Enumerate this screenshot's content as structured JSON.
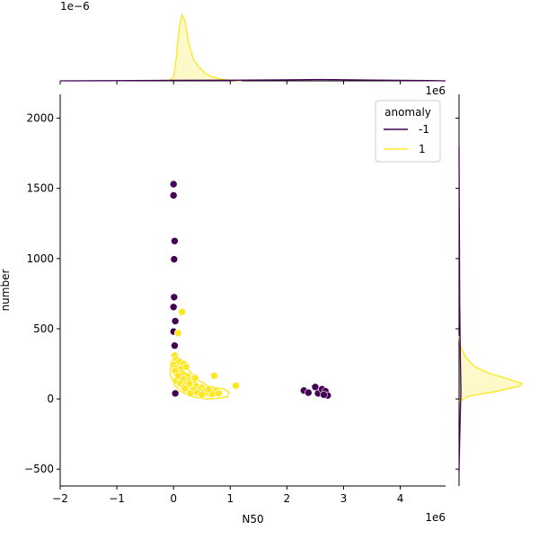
{
  "chart_data": {
    "type": "scatter",
    "xlabel": "N50",
    "ylabel": "number",
    "x_offset_text": "1e6",
    "y_offset_text_top_marginal": "1e−6",
    "x_offset_text_right_marginal": "1e6",
    "xlim": [
      -2.0,
      4.8
    ],
    "ylim": [
      -620,
      2170
    ],
    "xticks": [
      -2,
      -1,
      0,
      1,
      2,
      3,
      4
    ],
    "yticks": [
      -500,
      0,
      500,
      1000,
      1500,
      2000
    ],
    "legend": {
      "title": "anomaly",
      "placement": "top-right",
      "entries": [
        {
          "label": "-1",
          "color": "#440154"
        },
        {
          "label": "1",
          "color": "#fde725"
        }
      ]
    },
    "series": [
      {
        "name": "-1",
        "color": "#440154",
        "points": [
          [
            0.0,
            1530
          ],
          [
            0.0,
            1450
          ],
          [
            0.02,
            1125
          ],
          [
            0.01,
            995
          ],
          [
            0.01,
            725
          ],
          [
            0.0,
            655
          ],
          [
            0.03,
            555
          ],
          [
            0.0,
            480
          ],
          [
            0.02,
            380
          ],
          [
            0.03,
            40
          ],
          [
            2.3,
            60
          ],
          [
            2.38,
            45
          ],
          [
            2.5,
            85
          ],
          [
            2.55,
            40
          ],
          [
            2.62,
            70
          ],
          [
            2.68,
            55
          ],
          [
            2.72,
            25
          ],
          [
            2.65,
            30
          ]
        ]
      },
      {
        "name": "1",
        "color": "#fde725",
        "points": [
          [
            0.15,
            620
          ],
          [
            0.08,
            470
          ],
          [
            0.02,
            310
          ],
          [
            0.05,
            280
          ],
          [
            0.1,
            265
          ],
          [
            0.18,
            250
          ],
          [
            0.22,
            230
          ],
          [
            0.0,
            240
          ],
          [
            0.05,
            220
          ],
          [
            0.12,
            210
          ],
          [
            0.08,
            190
          ],
          [
            0.15,
            180
          ],
          [
            0.2,
            170
          ],
          [
            0.25,
            160
          ],
          [
            0.03,
            200
          ],
          [
            0.1,
            150
          ],
          [
            0.18,
            140
          ],
          [
            0.28,
            130
          ],
          [
            0.35,
            120
          ],
          [
            0.05,
            130
          ],
          [
            0.12,
            110
          ],
          [
            0.22,
            100
          ],
          [
            0.3,
            95
          ],
          [
            0.4,
            90
          ],
          [
            0.5,
            80
          ],
          [
            0.18,
            85
          ],
          [
            0.25,
            70
          ],
          [
            0.35,
            65
          ],
          [
            0.45,
            60
          ],
          [
            0.55,
            55
          ],
          [
            0.6,
            50
          ],
          [
            0.7,
            45
          ],
          [
            0.75,
            60
          ],
          [
            0.8,
            40
          ],
          [
            0.68,
            35
          ],
          [
            0.3,
            40
          ],
          [
            0.42,
            45
          ],
          [
            0.5,
            30
          ],
          [
            0.72,
            165
          ],
          [
            1.1,
            95
          ],
          [
            0.08,
            165
          ],
          [
            0.28,
            110
          ],
          [
            0.2,
            75
          ],
          [
            0.38,
            150
          ],
          [
            0.62,
            70
          ]
        ]
      }
    ],
    "marginal_top": {
      "series": [
        {
          "name": "1",
          "color": "#fde725",
          "density": [
            [
              -0.1,
              0.0
            ],
            [
              0.0,
              0.05
            ],
            [
              0.05,
              0.35
            ],
            [
              0.1,
              0.8
            ],
            [
              0.15,
              0.98
            ],
            [
              0.2,
              0.9
            ],
            [
              0.27,
              0.55
            ],
            [
              0.35,
              0.32
            ],
            [
              0.45,
              0.2
            ],
            [
              0.55,
              0.12
            ],
            [
              0.65,
              0.07
            ],
            [
              0.8,
              0.03
            ],
            [
              1.0,
              0.01
            ],
            [
              1.2,
              0.0
            ]
          ]
        },
        {
          "name": "-1",
          "color": "#440154",
          "density": [
            [
              -2.0,
              0.0
            ],
            [
              -1.0,
              0.003
            ],
            [
              0.0,
              0.008
            ],
            [
              1.0,
              0.01
            ],
            [
              2.0,
              0.015
            ],
            [
              2.6,
              0.02
            ],
            [
              3.5,
              0.012
            ],
            [
              4.5,
              0.004
            ],
            [
              4.8,
              0.0
            ]
          ]
        }
      ]
    },
    "marginal_right": {
      "series": [
        {
          "name": "1",
          "color": "#fde725",
          "density": [
            [
              -20,
              0.0
            ],
            [
              20,
              0.15
            ],
            [
              50,
              0.55
            ],
            [
              90,
              0.95
            ],
            [
              110,
              1.0
            ],
            [
              140,
              0.8
            ],
            [
              180,
              0.5
            ],
            [
              230,
              0.25
            ],
            [
              300,
              0.1
            ],
            [
              380,
              0.02
            ],
            [
              450,
              0.0
            ]
          ]
        },
        {
          "name": "-1",
          "color": "#440154",
          "density": [
            [
              -520,
              0.0
            ],
            [
              -300,
              0.01
            ],
            [
              -100,
              0.02
            ],
            [
              50,
              0.03
            ],
            [
              300,
              0.02
            ],
            [
              700,
              0.01
            ],
            [
              1200,
              0.005
            ],
            [
              1600,
              0.002
            ],
            [
              1800,
              0.0
            ]
          ]
        }
      ]
    }
  }
}
